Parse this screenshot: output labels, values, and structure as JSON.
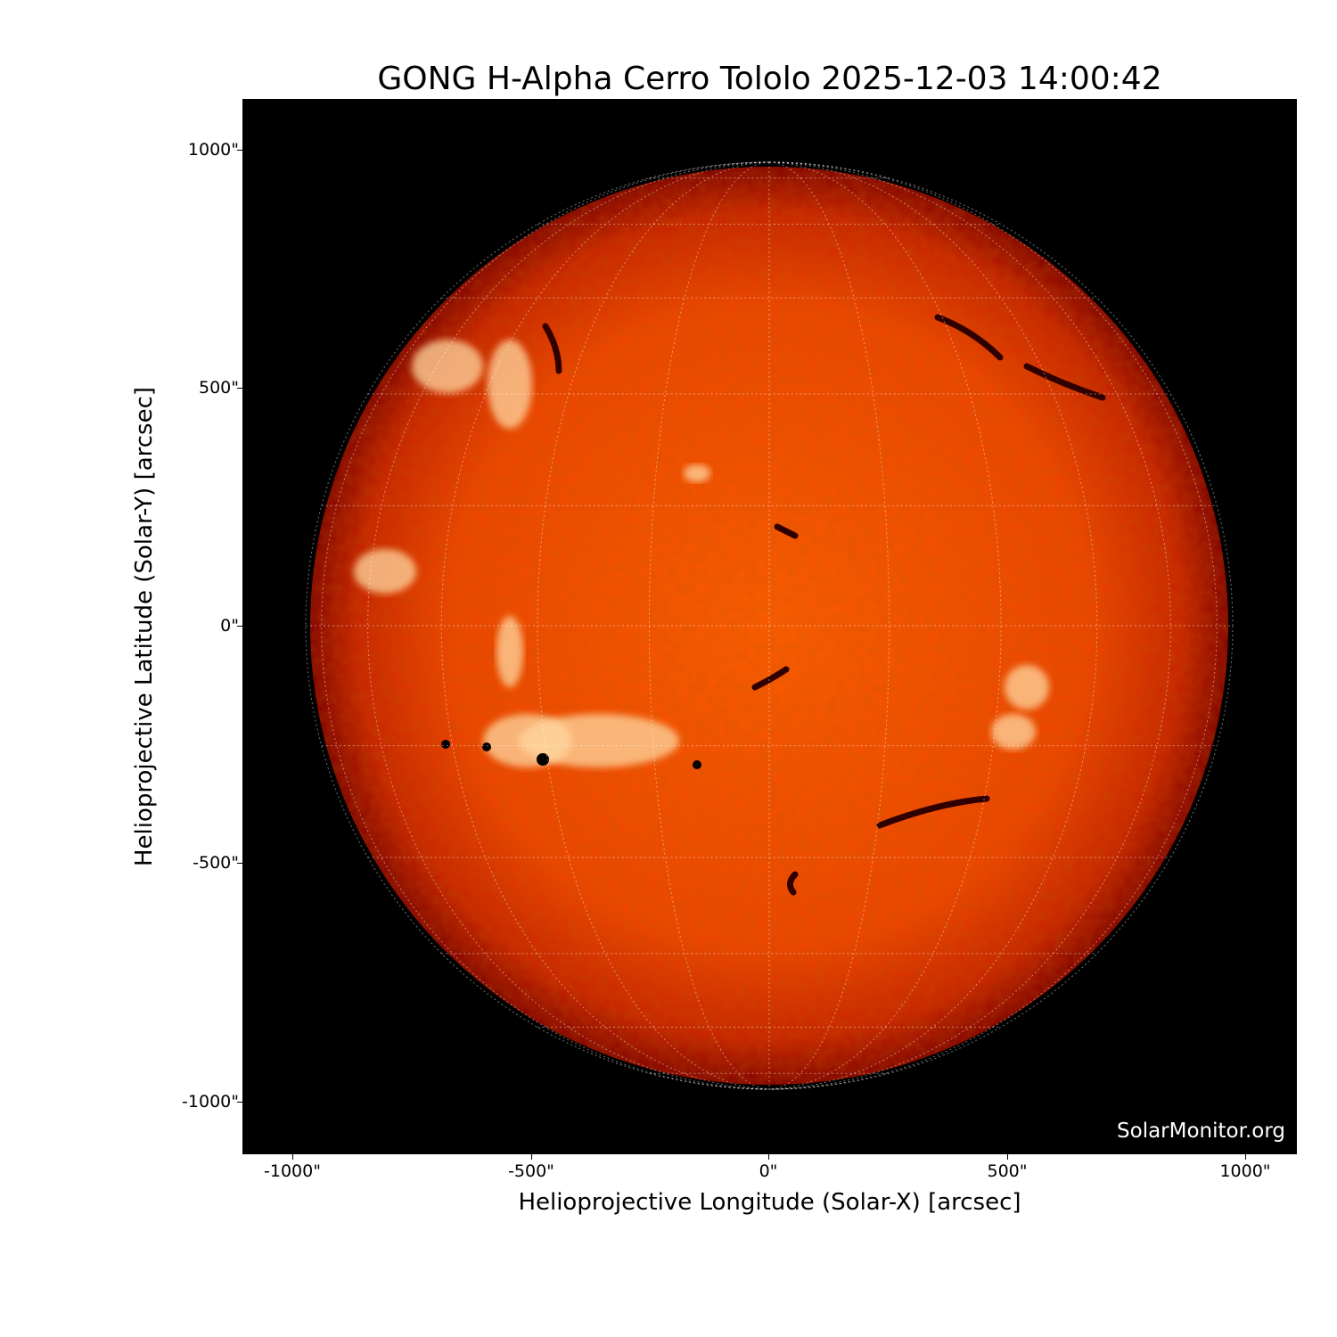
{
  "title": "GONG H-Alpha Cerro Tololo 2025-12-03 14:00:42",
  "xlabel": "Helioprojective Longitude (Solar-X) [arcsec]",
  "ylabel": "Helioprojective Latitude (Solar-Y) [arcsec]",
  "x_ticks": [
    "-1000\"",
    "-500\"",
    "0\"",
    "500\"",
    "1000\""
  ],
  "y_ticks": [
    "1000\"",
    "500\"",
    "0\"",
    "-500\"",
    "-1000\""
  ],
  "watermark": "SolarMonitor.org",
  "colors": {
    "background": "#000000",
    "disk_center": "#ff5a00",
    "disk_limb": "#8a0000",
    "grid": "#ffffff"
  }
}
